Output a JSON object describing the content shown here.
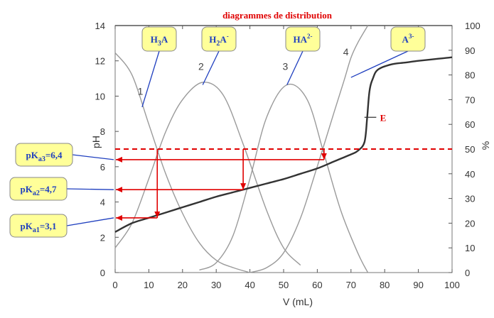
{
  "chart_data": {
    "type": "line",
    "title": "diagrammes de distribution",
    "xlabel": "V (mL)",
    "ylabel_left": "pH",
    "ylabel_right": "%",
    "xlim": [
      0,
      100
    ],
    "ylim_left": [
      0,
      14
    ],
    "ylim_right": [
      0,
      100
    ],
    "x_ticks": [
      "0",
      "10",
      "20",
      "30",
      "40",
      "50",
      "60",
      "70",
      "80",
      "90",
      "100"
    ],
    "y_left_ticks": [
      "0",
      "2",
      "4",
      "6",
      "8",
      "10",
      "12",
      "14"
    ],
    "y_right_ticks": [
      "0",
      "10",
      "20",
      "30",
      "40",
      "50",
      "60",
      "70",
      "80",
      "90",
      "100"
    ],
    "series": [
      {
        "label": "1",
        "species": "H3A",
        "axis": "right",
        "x": [
          0,
          5,
          10,
          15,
          20,
          25,
          30,
          35,
          40
        ],
        "y": [
          89,
          80,
          60,
          40,
          24,
          12,
          5,
          2,
          0
        ]
      },
      {
        "label": "2",
        "species": "H2A-",
        "axis": "right",
        "x": [
          0,
          5,
          10,
          15,
          20,
          26,
          32,
          38,
          45,
          50,
          55
        ],
        "y": [
          10,
          20,
          38,
          57,
          70,
          77,
          72,
          52,
          25,
          10,
          3
        ]
      },
      {
        "label": "3",
        "species": "HA2-",
        "axis": "right",
        "x": [
          25,
          30,
          35,
          40,
          45,
          51,
          57,
          62,
          67,
          72,
          75
        ],
        "y": [
          1,
          4,
          15,
          38,
          63,
          76,
          70,
          48,
          25,
          8,
          0
        ]
      },
      {
        "label": "4",
        "species": "A3-",
        "axis": "right",
        "x": [
          40,
          45,
          50,
          55,
          60,
          65,
          68,
          70,
          72,
          75
        ],
        "y": [
          0,
          2,
          8,
          22,
          43,
          65,
          78,
          87,
          93,
          100
        ]
      },
      {
        "label": "E",
        "axis": "left",
        "x": [
          0,
          5,
          10,
          15,
          20,
          25,
          30,
          35,
          40,
          45,
          50,
          55,
          60,
          65,
          70,
          72,
          74,
          74.8,
          75.5,
          76.5,
          78,
          82,
          86,
          90,
          95,
          100
        ],
        "y": [
          2.3,
          2.8,
          3.1,
          3.4,
          3.7,
          4.0,
          4.3,
          4.55,
          4.8,
          5.05,
          5.3,
          5.6,
          5.9,
          6.3,
          6.7,
          6.9,
          7.4,
          8.8,
          10.3,
          11.0,
          11.5,
          11.8,
          11.9,
          12.0,
          12.1,
          12.2
        ]
      }
    ],
    "reference_line": {
      "axis": "right",
      "y": 50,
      "style": "dashed",
      "color": "#e00000"
    },
    "callouts": [
      {
        "sub": "H",
        "sub_index": "3",
        "main": "A",
        "sup": "",
        "target": {
          "x": 8,
          "y_right": 67
        }
      },
      {
        "sub": "H",
        "sub_index": "2",
        "main": "A",
        "sup": "-",
        "target": {
          "x": 26,
          "y_right": 76
        }
      },
      {
        "sub": "H",
        "sub_index": "",
        "main": "A",
        "sup": "2-",
        "target": {
          "x": 51,
          "y_right": 76
        }
      },
      {
        "sub": "",
        "sub_index": "",
        "main": "A",
        "sup": "3-",
        "target": {
          "x": 70,
          "y_right": 79
        }
      }
    ],
    "pka_labels": [
      {
        "prefix": "pK",
        "sub": "a3",
        "value": "=6,4",
        "ph": 6.4,
        "v": 62
      },
      {
        "prefix": "pK",
        "sub": "a2",
        "value": "=4,7",
        "ph": 4.7,
        "v": 38
      },
      {
        "prefix": "pK",
        "sub": "a1",
        "value": "=3,1",
        "ph": 3.1,
        "v": 12.5
      }
    ],
    "curve_labels": [
      "1",
      "2",
      "3",
      "4"
    ],
    "e_label": "E",
    "colors": {
      "curve": "#9a9a9a",
      "titration": "#333333",
      "arrow": "#e00000",
      "callout_fill": "#ffff99",
      "callout_text": "#1f3fbf"
    }
  }
}
